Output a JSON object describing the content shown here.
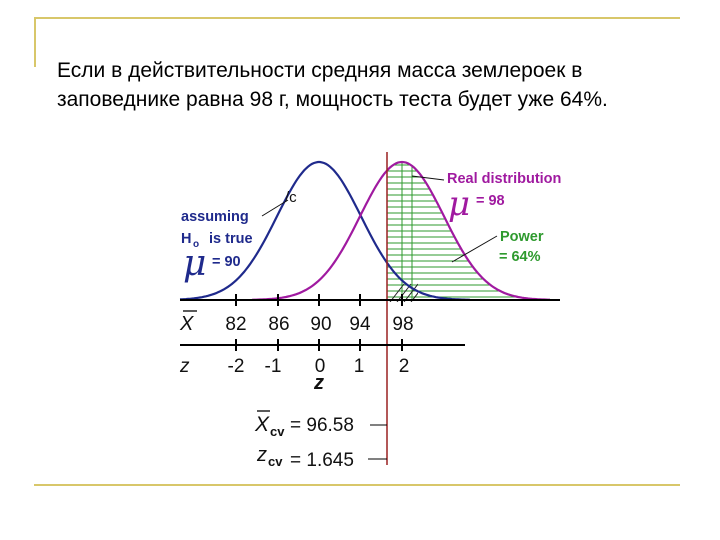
{
  "slide": {
    "line1": "Если в действительности средняя масса землероек в",
    "line2": "заповеднике равна 98 г, мощность теста будет уже 64%."
  },
  "figure": {
    "null_label_line1": "assuming",
    "null_label_h": "H",
    "null_label_sub": "o",
    "null_label_rest": "is true",
    "null_mu_symbol": "μ",
    "null_mu_value": "= 90",
    "real_label": "Real distribution",
    "real_mu_symbol": "μ",
    "real_mu_value": "= 98",
    "power_line1": "Power",
    "power_line2": "= 64%",
    "curve_label": "/c",
    "x_axis_label": "X",
    "x_ticks": [
      "82",
      "86",
      "90",
      "94",
      "98"
    ],
    "z_axis_label": "z",
    "z_ticks": [
      "-2",
      "-1",
      "0",
      "1",
      "2"
    ],
    "z_center_label": "z",
    "xcv_symbol": "X",
    "xcv_sub": "cv",
    "xcv_value": "= 96.58",
    "zcv_symbol": "z",
    "zcv_sub": "cv",
    "zcv_value": "= 1.645",
    "colors": {
      "null_curve": "#1f2a8c",
      "real_curve": "#a01aa0",
      "power_hatch": "#2e9a2e",
      "critical_line": "#9a2020",
      "label_purple": "#a01aa0",
      "label_blue": "#1f2a8c"
    }
  }
}
